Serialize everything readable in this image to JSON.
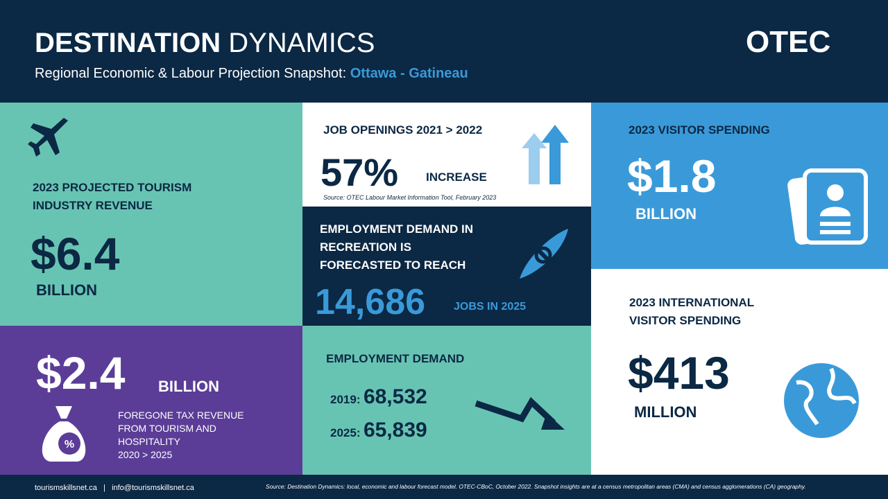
{
  "header": {
    "title_bold": "DESTINATION",
    "title_rest": "DYNAMICS",
    "subtitle": "Regional Economic & Labour Projection Snapshot:",
    "region": "Ottawa - Gatineau",
    "logo": "OTEC"
  },
  "revenue": {
    "label": "2023 PROJECTED TOURISM INDUSTRY REVENUE",
    "amount": "$6.4",
    "unit": "BILLION"
  },
  "tax": {
    "amount": "$2.4",
    "unit": "BILLION",
    "label": "FOREGONE TAX REVENUE FROM TOURISM AND HOSPITALITY",
    "period": "2020 > 2025"
  },
  "job_openings": {
    "label": "JOB OPENINGS 2021 > 2022",
    "amount": "57%",
    "unit": "INCREASE",
    "source": "Source: OTEC Labour Market Information Tool, February 2023"
  },
  "recreation": {
    "label": "EMPLOYMENT DEMAND IN RECREATION IS FORECASTED TO REACH",
    "amount": "14,686",
    "unit": "JOBS IN 2025"
  },
  "employment": {
    "label": "EMPLOYMENT DEMAND",
    "rows": [
      [
        "2019:",
        "68,532"
      ],
      [
        "2025:",
        "65,839"
      ]
    ]
  },
  "visitor": {
    "label": "2023 VISITOR SPENDING",
    "amount": "$1.8",
    "unit": "BILLION"
  },
  "international": {
    "label": "2023 INTERNATIONAL VISITOR SPENDING",
    "amount": "$413",
    "unit": "MILLION"
  },
  "footer": {
    "website": "tourismskillsnet.ca",
    "separator": "|",
    "email": "info@tourismskillsnet.ca",
    "source": "Source: Destination Dynamics: local, economic and labour forecast model. OTEC-CBoC, October 2022. Snapshot insights are at a census metropolitan areas (CMA) and census agglomerations (CA) geography."
  }
}
